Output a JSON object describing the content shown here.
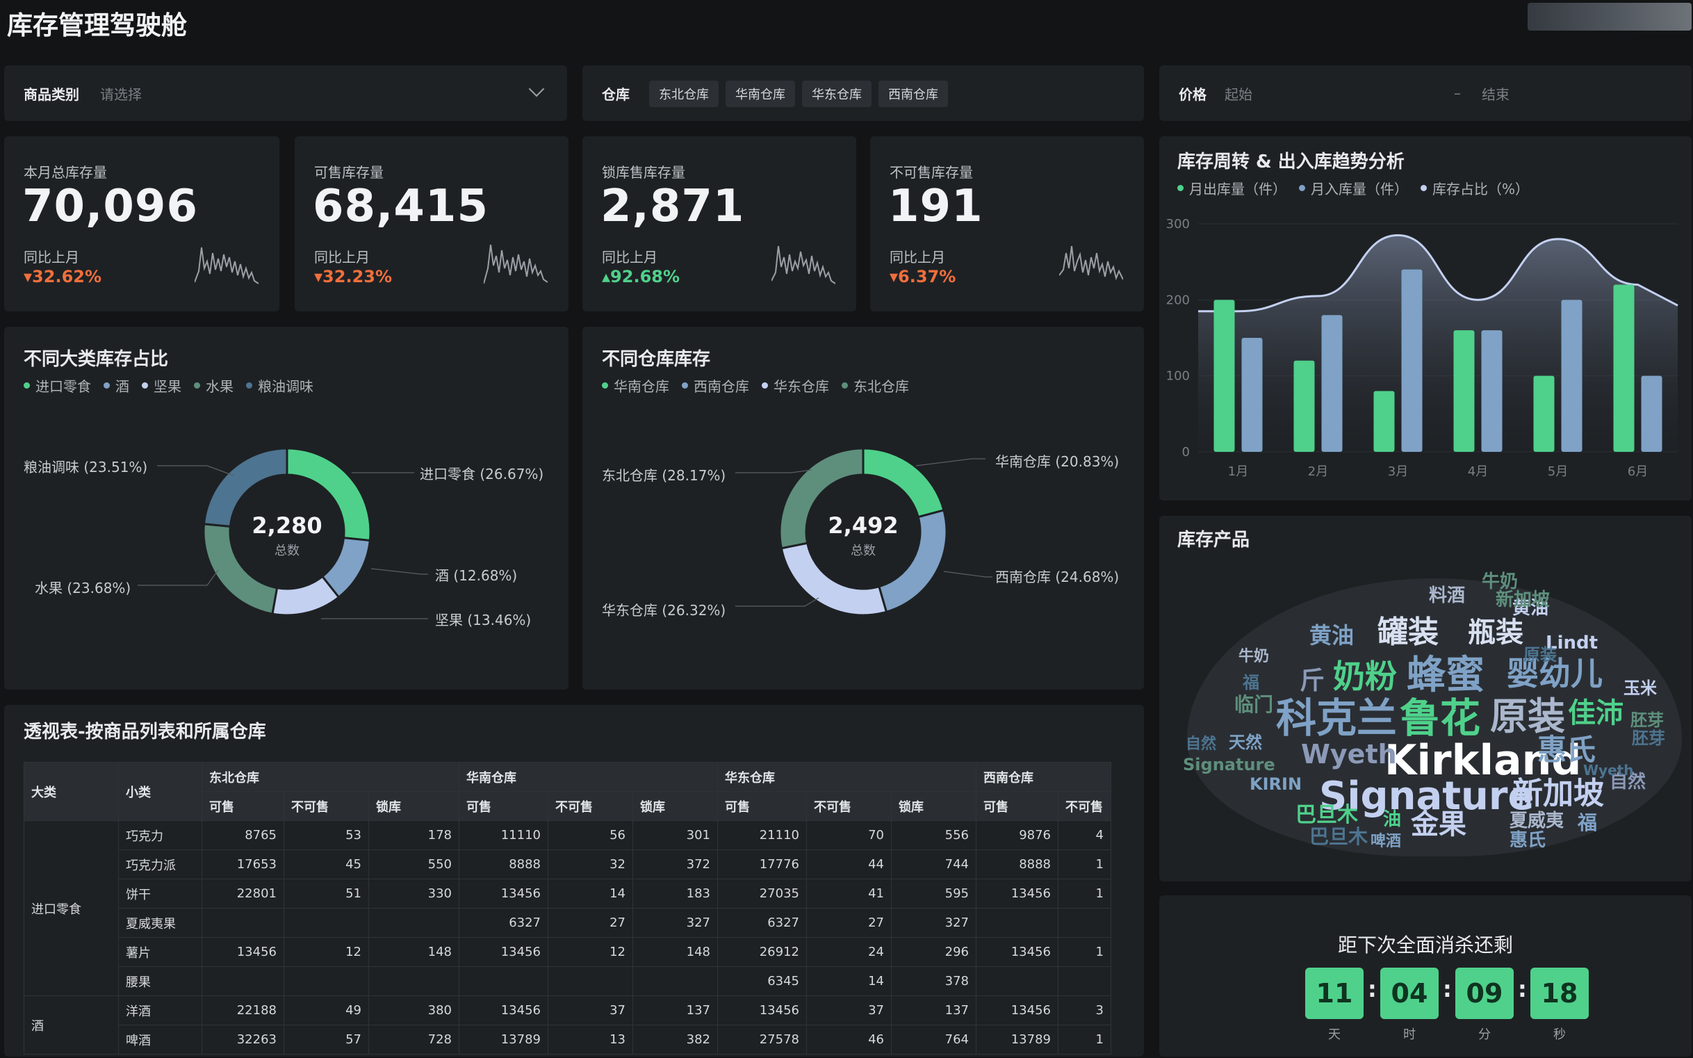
{
  "page": {
    "title": "库存管理驾驶舱"
  },
  "filters": {
    "category": {
      "label": "商品类别",
      "placeholder": "请选择"
    },
    "warehouse": {
      "label": "仓库",
      "tags": [
        "东北仓库",
        "华南仓库",
        "华东仓库",
        "西南仓库"
      ]
    },
    "price": {
      "label": "价格",
      "start_placeholder": "起始",
      "separator": "–",
      "end_placeholder": "结束"
    }
  },
  "kpis": [
    {
      "label": "本月总库存量",
      "value": "70,096",
      "compare": "同比上月",
      "pct": "32.62%",
      "dir": "down",
      "color": "#f06f3c"
    },
    {
      "label": "可售库存量",
      "value": "68,415",
      "compare": "同比上月",
      "pct": "32.23%",
      "dir": "down",
      "color": "#f06f3c"
    },
    {
      "label": "锁库售库存量",
      "value": "2,871",
      "compare": "同比上月",
      "pct": "92.68%",
      "dir": "up",
      "color": "#4fd18b"
    },
    {
      "label": "不可售库存量",
      "value": "191",
      "compare": "同比上月",
      "pct": "6.37%",
      "dir": "down",
      "color": "#f06f3c"
    }
  ],
  "category_donut": {
    "title": "不同大类库存占比",
    "total": "2,280",
    "total_label": "总数",
    "legend": [
      "进口零食",
      "酒",
      "坚果",
      "水果",
      "粮油调味"
    ],
    "slices": [
      {
        "name": "进口零食",
        "label": "进口零食 (26.67%)",
        "value": 26.67,
        "color": "#4fd18b"
      },
      {
        "name": "酒",
        "label": "酒 (12.68%)",
        "value": 12.68,
        "color": "#7fa2c6"
      },
      {
        "name": "坚果",
        "label": "坚果 (13.46%)",
        "value": 13.46,
        "color": "#c3d0f0"
      },
      {
        "name": "水果",
        "label": "水果 (23.68%)",
        "value": 23.68,
        "color": "#5e8f7c"
      },
      {
        "name": "粮油调味",
        "label": "粮油调味 (23.51%)",
        "value": 23.51,
        "color": "#4d7490"
      }
    ]
  },
  "warehouse_donut": {
    "title": "不同仓库库存",
    "total": "2,492",
    "total_label": "总数",
    "legend": [
      "华南仓库",
      "西南仓库",
      "华东仓库",
      "东北仓库"
    ],
    "slices": [
      {
        "name": "华南仓库",
        "label": "华南仓库 (20.83%)",
        "value": 20.83,
        "color": "#4fd18b"
      },
      {
        "name": "西南仓库",
        "label": "西南仓库 (24.68%)",
        "value": 24.68,
        "color": "#7fa2c6"
      },
      {
        "name": "华东仓库",
        "label": "华东仓库 (26.32%)",
        "value": 26.32,
        "color": "#c3d0f0"
      },
      {
        "name": "东北仓库",
        "label": "东北仓库 (28.17%)",
        "value": 28.17,
        "color": "#5e8f7c"
      }
    ]
  },
  "chart_data": {
    "type": "bar",
    "title": "库存周转 & 出入库趋势分析",
    "legend": [
      "月出库量（件）",
      "月入库量（件）",
      "库存占比（%）"
    ],
    "categories": [
      "1月",
      "2月",
      "3月",
      "4月",
      "5月",
      "6月"
    ],
    "ylim": [
      0,
      300
    ],
    "yticks": [
      0,
      100,
      200,
      300
    ],
    "series": [
      {
        "name": "月出库量（件）",
        "type": "bar",
        "color": "#4fd18b",
        "values": [
          200,
          120,
          80,
          160,
          100,
          220
        ]
      },
      {
        "name": "月入库量（件）",
        "type": "bar",
        "color": "#7fa2c6",
        "values": [
          150,
          180,
          240,
          160,
          200,
          100
        ]
      },
      {
        "name": "库存占比（%）",
        "type": "area",
        "color": "#c3d0f0",
        "values": [
          185,
          205,
          285,
          200,
          280,
          220
        ]
      }
    ]
  },
  "wordcloud": {
    "title": "库存产品",
    "words": [
      "Kirkland",
      "Signature",
      "科克兰",
      "鲁花",
      "原装",
      "蜂蜜",
      "奶粉",
      "婴幼儿",
      "新加坡",
      "罐装",
      "瓶装",
      "佳沛",
      "惠氏",
      "Wyeth",
      "金果",
      "巴旦木",
      "黄油",
      "Lindt",
      "料酒",
      "牛奶",
      "临门",
      "天然",
      "KIRIN",
      "胚芽",
      "玉米",
      "自然",
      "夏威夷",
      "福",
      "斤",
      "油",
      "Wyeth",
      "福",
      "巴旦木",
      "牛奶",
      "Signature",
      "自然",
      "胚芽",
      "黄油",
      "新加坡",
      "惠氏",
      "原装",
      "啤酒"
    ]
  },
  "pivot": {
    "title": "透视表-按商品列表和所属仓库",
    "h_cat": "大类",
    "h_sub": "小类",
    "warehouses": [
      "东北仓库",
      "华南仓库",
      "华东仓库",
      "西南仓库"
    ],
    "metrics": [
      "可售",
      "不可售",
      "锁库"
    ],
    "groups": [
      {
        "name": "进口零食",
        "rows": [
          {
            "sub": "巧克力",
            "cells": [
              "8765",
              "53",
              "178",
              "11110",
              "56",
              "301",
              "21110",
              "70",
              "556",
              "9876",
              "4"
            ]
          },
          {
            "sub": "巧克力派",
            "cells": [
              "17653",
              "45",
              "550",
              "8888",
              "32",
              "372",
              "17776",
              "44",
              "744",
              "8888",
              "1"
            ]
          },
          {
            "sub": "饼干",
            "cells": [
              "22801",
              "51",
              "330",
              "13456",
              "14",
              "183",
              "27035",
              "41",
              "595",
              "13456",
              "1"
            ]
          },
          {
            "sub": "夏威夷果",
            "cells": [
              "",
              "",
              "",
              "6327",
              "27",
              "327",
              "6327",
              "27",
              "327",
              "",
              ""
            ]
          },
          {
            "sub": "薯片",
            "cells": [
              "13456",
              "12",
              "148",
              "13456",
              "12",
              "148",
              "26912",
              "24",
              "296",
              "13456",
              "1"
            ]
          },
          {
            "sub": "腰果",
            "cells": [
              "",
              "",
              "",
              "",
              "",
              "",
              "6345",
              "14",
              "378",
              "",
              ""
            ]
          }
        ]
      },
      {
        "name": "酒",
        "rows": [
          {
            "sub": "洋酒",
            "cells": [
              "22188",
              "49",
              "380",
              "13456",
              "37",
              "137",
              "13456",
              "37",
              "137",
              "13456",
              "3"
            ]
          },
          {
            "sub": "啤酒",
            "cells": [
              "32263",
              "57",
              "728",
              "13789",
              "13",
              "382",
              "27578",
              "46",
              "764",
              "13789",
              "1"
            ]
          }
        ]
      }
    ]
  },
  "countdown": {
    "title": "距下次全面消杀还剩",
    "units": [
      {
        "value": "11",
        "unit": "天"
      },
      {
        "value": "04",
        "unit": "时"
      },
      {
        "value": "09",
        "unit": "分"
      },
      {
        "value": "18",
        "unit": "秒"
      }
    ]
  }
}
